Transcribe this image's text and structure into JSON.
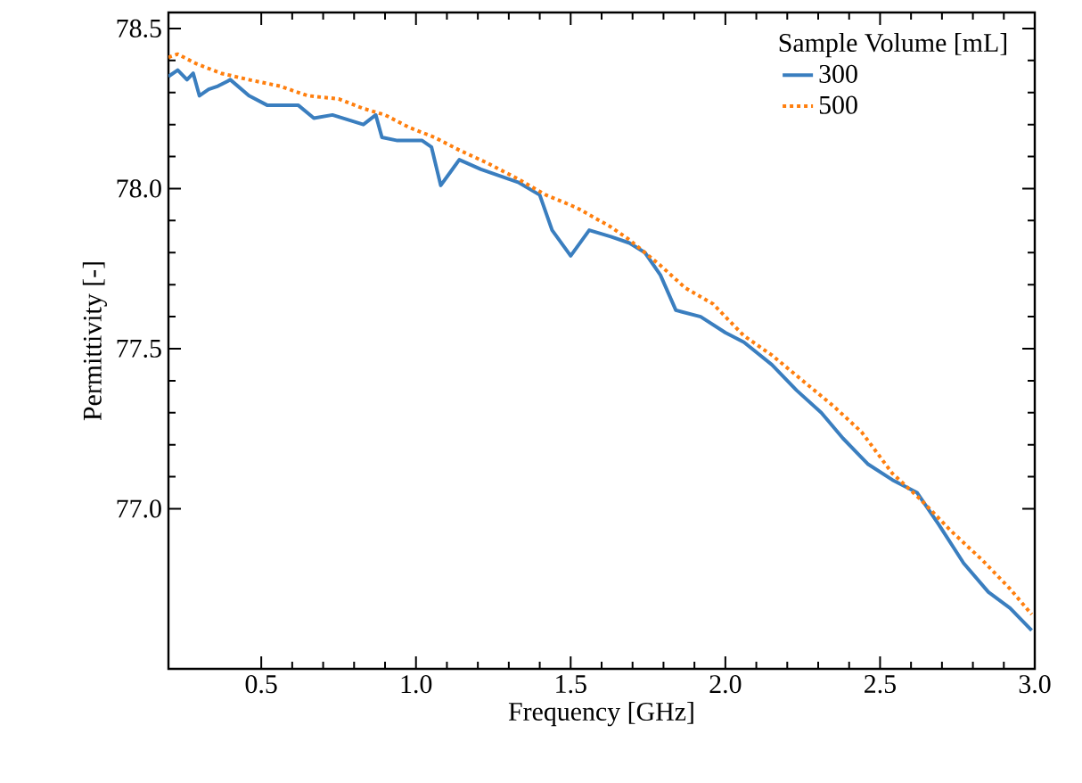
{
  "chart_data": {
    "type": "line",
    "xlabel": "Frequency [GHz]",
    "ylabel": "Permittivity [-]",
    "legend_title": "Sample Volume [mL]",
    "legend": "top right",
    "xlim": [
      0.2,
      3.0
    ],
    "ylim": [
      76.5,
      78.55
    ],
    "xticks": [
      0.5,
      {
        "value": 1,
        "label": "1.0"
      },
      1.5,
      {
        "value": 2,
        "label": "2.0"
      },
      2.5,
      {
        "value": 3,
        "label": "3.0"
      }
    ],
    "yticks": [
      {
        "value": 77,
        "label": "77.0"
      },
      77.5,
      {
        "value": 78,
        "label": "78.0"
      },
      78.5
    ],
    "series": [
      {
        "name": "300",
        "color": "#3a7ebf",
        "line_style": "solid",
        "x": [
          0.2,
          0.23,
          0.26,
          0.28,
          0.3,
          0.33,
          0.36,
          0.4,
          0.46,
          0.52,
          0.62,
          0.67,
          0.73,
          0.83,
          0.87,
          0.89,
          0.94,
          1.02,
          1.05,
          1.08,
          1.14,
          1.21,
          1.33,
          1.4,
          1.44,
          1.5,
          1.56,
          1.63,
          1.69,
          1.74,
          1.79,
          1.84,
          1.92,
          2.0,
          2.06,
          2.15,
          2.23,
          2.31,
          2.38,
          2.46,
          2.54,
          2.62,
          2.69,
          2.77,
          2.85,
          2.92,
          2.99
        ],
        "values": [
          78.35,
          78.37,
          78.34,
          78.36,
          78.29,
          78.31,
          78.32,
          78.34,
          78.29,
          78.26,
          78.26,
          78.22,
          78.23,
          78.2,
          78.23,
          78.16,
          78.15,
          78.15,
          78.13,
          78.01,
          78.09,
          78.06,
          78.02,
          77.98,
          77.87,
          77.79,
          77.87,
          77.85,
          77.83,
          77.8,
          77.73,
          77.62,
          77.6,
          77.55,
          77.52,
          77.45,
          77.37,
          77.3,
          77.22,
          77.14,
          77.09,
          77.05,
          76.95,
          76.83,
          76.74,
          76.69,
          76.62
        ]
      },
      {
        "name": "500",
        "color": "#ff7f0e",
        "line_style": "dotted",
        "x": [
          0.2,
          0.23,
          0.29,
          0.37,
          0.46,
          0.56,
          0.65,
          0.75,
          0.83,
          0.9,
          0.98,
          1.06,
          1.14,
          1.23,
          1.33,
          1.42,
          1.52,
          1.63,
          1.69,
          1.79,
          1.87,
          1.96,
          2.06,
          2.15,
          2.25,
          2.35,
          2.44,
          2.54,
          2.63,
          2.73,
          2.83,
          2.92,
          2.99
        ],
        "values": [
          78.41,
          78.42,
          78.39,
          78.36,
          78.34,
          78.32,
          78.29,
          78.28,
          78.25,
          78.23,
          78.19,
          78.16,
          78.12,
          78.08,
          78.03,
          77.98,
          77.94,
          77.88,
          77.84,
          77.76,
          77.69,
          77.64,
          77.54,
          77.48,
          77.4,
          77.32,
          77.24,
          77.11,
          77.03,
          76.93,
          76.84,
          76.75,
          76.67
        ]
      }
    ]
  }
}
